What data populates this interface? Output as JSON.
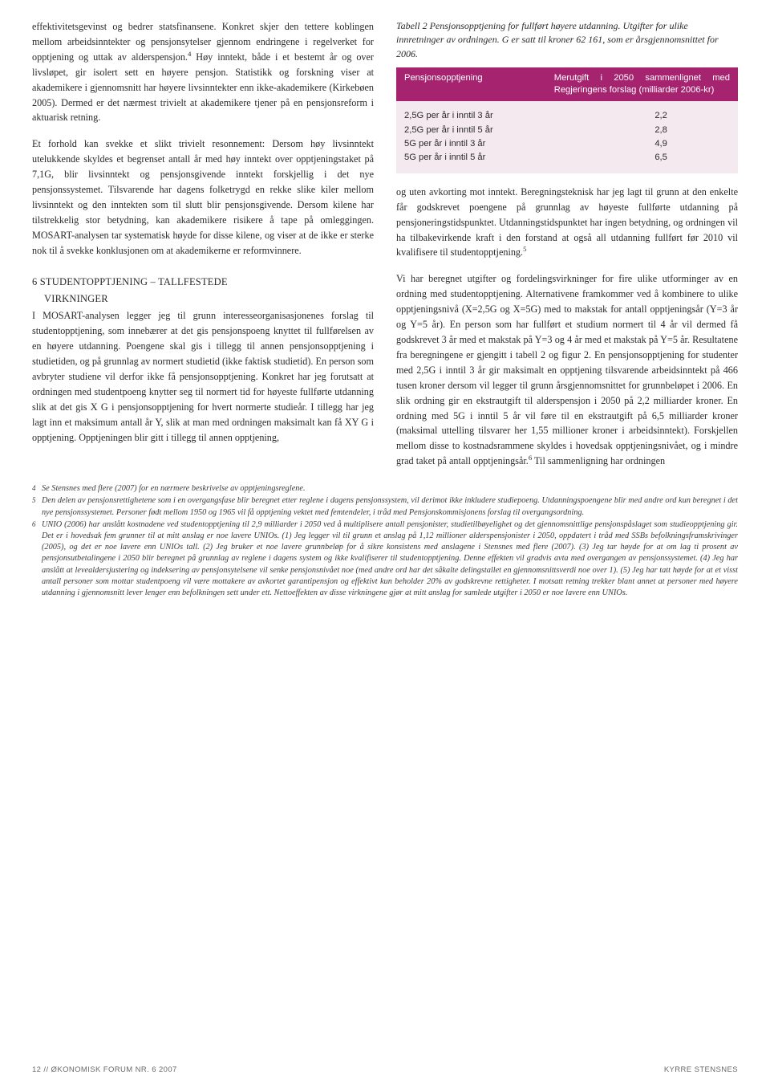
{
  "left_col": {
    "p1": "effektivitetsgevinst og bedrer statsfinansene. Konkret skjer den tettere koblingen mellom arbeidsinntekter og pensjonsytelser gjennom endringene i regelverket for opptjening og uttak av alderspensjon.",
    "sup1": "4",
    "p1b": " Høy inntekt, både i et bestemt år og over livsløpet, gir isolert sett en høyere pensjon. Statistikk og forskning viser at akademikere i gjennomsnitt har høyere livsinntekter enn ikke-akademikere (Kirkebøen 2005). Dermed er det nærmest trivielt at akademikere tjener på en pensjonsreform i aktuarisk retning.",
    "p2": "Et forhold kan svekke et slikt trivielt resonnement: Dersom høy livsinntekt utelukkende skyldes et begrenset antall år med høy inntekt over opptjeningstaket på 7,1G, blir livsinntekt og pensjonsgivende inntekt forskjellig i det nye pensjonssystemet. Tilsvarende har dagens folketrygd en rekke slike kiler mellom livsinntekt og den inntekten som til slutt blir pensjonsgivende. Dersom kilene har tilstrekkelig stor betydning, kan akademikere risikere å tape på omleggingen. MOSART-analysen tar systematisk høyde for disse kilene, og viser at de ikke er sterke nok til å svekke konklusjonen om at akademikerne er reformvinnere.",
    "h1a": "6 STUDENTOPPTJENING – TALLFESTEDE",
    "h1b": "VIRKNINGER",
    "p3": "I MOSART-analysen legger jeg til grunn interesseorganisasjonenes forslag til studentopptjening, som innebærer at det gis pensjonspoeng knyttet til fullførelsen av en høyere utdanning. Poengene skal gis i tillegg til annen pensjonsopptjening i studietiden, og på grunnlag av normert studietid (ikke faktisk studietid). En person som avbryter studiene vil derfor ikke få pensjonsopptjening. Konkret har jeg forutsatt at ordningen med studentpoeng knytter seg til normert tid for høyeste fullførte utdanning slik at det gis X G i pensjonsopptjening for hvert normerte studieår. I tillegg har jeg lagt inn et maksimum antall år Y, slik at man med ordningen maksimalt kan få XY G i opptjening. Opptjeningen blir gitt i tillegg til annen opptjening,"
  },
  "table": {
    "caption": "Tabell 2 Pensjonsopptjening for fullført høyere utdanning. Utgifter for ulike innretninger av ordningen. G er satt til kroner 62 161, som er årsgjennomsnittet for 2006.",
    "header_left": "Pensjonsopptjening",
    "header_right": "Merutgift i 2050 sammenlignet med Regjeringens forslag (milliarder 2006-kr)",
    "header_bg": "#a6236f",
    "body_bg": "#f3e9ef",
    "rows": [
      {
        "l": "2,5G per år i inntil 3 år",
        "r": "2,2"
      },
      {
        "l": "2,5G per år i inntil 5 år",
        "r": "2,8"
      },
      {
        "l": "5G per år i inntil 3 år",
        "r": "4,9"
      },
      {
        "l": "5G per år i inntil 5 år",
        "r": "6,5"
      }
    ]
  },
  "right_col": {
    "p1": "og uten avkorting mot inntekt. Beregningsteknisk har jeg lagt til grunn at den enkelte får godskrevet poengene på grunnlag av høyeste fullførte utdanning på pensjoneringstidspunktet. Utdanningstidspunktet har ingen betydning, og ordningen vil ha tilbakevirkende kraft i den forstand at også all utdanning fullført før 2010 vil kvalifisere til studentopptjening.",
    "sup1": "5",
    "p2": "Vi har beregnet utgifter og fordelingsvirkninger for fire ulike utforminger av en ordning med studentopptjening. Alternativene framkommer ved å kombinere to ulike opptjeningsnivå (X=2,5G og X=5G) med to makstak for antall opptjeningsår (Y=3 år og Y=5 år). En person som har fullført et studium normert til 4 år vil dermed få godskrevet 3 år med et makstak på Y=3 og 4 år med et makstak på Y=5 år. Resultatene fra beregningene er gjengitt i tabell 2 og figur 2. En pensjonsopptjening for studenter med 2,5G i inntil 3 år gir maksimalt en opptjening tilsvarende arbeidsinntekt på 466 tusen kroner dersom vil legger til grunn årsgjennomsnittet for grunnbeløpet i 2006. En slik ordning gir en ekstrautgift til alderspensjon i 2050 på 2,2 milliarder kroner. En ordning med 5G i inntil 5 år vil føre til en ekstrautgift på 6,5 milliarder kroner (maksimal uttelling tilsvarer her 1,55 millioner kroner i arbeidsinntekt). Forskjellen mellom disse to kostnadsrammene skyldes i hovedsak opptjeningsnivået, og i mindre grad taket på antall opptjeningsår.",
    "sup2": "6",
    "p2b": " Til sammenligning har ordningen"
  },
  "footnotes": {
    "f4": "Se Stensnes med flere (2007) for en nærmere beskrivelse av opptjeningsreglene.",
    "f5": "Den delen av pensjonsrettighetene som i en overgangsfase blir beregnet etter reglene i dagens pensjonssystem, vil derimot ikke inkludere studiepoeng. Utdanningspoengene blir med andre ord kun beregnet i det nye pensjonssystemet. Personer født mellom 1950 og 1965 vil få opptjening vektet med femtendeler, i tråd med Pensjonskommisjonens forslag til overgangsordning.",
    "f6": "UNIO (2006) har anslått kostnadene ved studentopptjening til 2,9 milliarder i 2050 ved å multiplisere antall pensjonister, studietilbøyelighet og det gjennomsnittlige pensjonspåslaget som studieopptjening gir. Det er i hovedsak fem grunner til at mitt anslag er noe lavere UNIOs. (1) Jeg legger vil til grunn et anslag på 1,12 millioner alderspensjonister i 2050, oppdatert i tråd med SSBs befolkningsframskrivinger (2005), og det er noe lavere enn UNIOs tall. (2) Jeg bruker et noe lavere grunnbeløp for å sikre konsistens med anslagene i Stensnes med flere (2007). (3) Jeg tar høyde for at om lag ti prosent av pensjonsutbetalingene i 2050 blir beregnet på grunnlag av reglene i dagens system og ikke kvalifiserer til studentopptjening. Denne effekten vil gradvis avta med overgangen av pensjonssystemet. (4) Jeg har anslått at levealdersjustering og indeksering av pensjonsytelsene vil senke pensjonsnivået noe (med andre ord har det såkalte delingstallet en gjennomsnittsverdi noe over 1). (5) Jeg har tatt høyde for at et visst antall personer som mottar studentpoeng vil være mottakere av avkortet garantipensjon og effektivt kun beholder 20% av godskrevne rettigheter. I motsatt retning trekker blant annet at personer med høyere utdanning i gjennomsnitt lever lenger enn befolkningen sett under ett. Nettoeffekten av disse virkningene gjør at mitt anslag for samlede utgifter i 2050 er noe lavere enn UNIOs."
  },
  "footer": {
    "left_a": "12",
    "left_b": "// ØKONOMISK FORUM NR. 6 2007",
    "right": "KYRRE STENSNES"
  }
}
